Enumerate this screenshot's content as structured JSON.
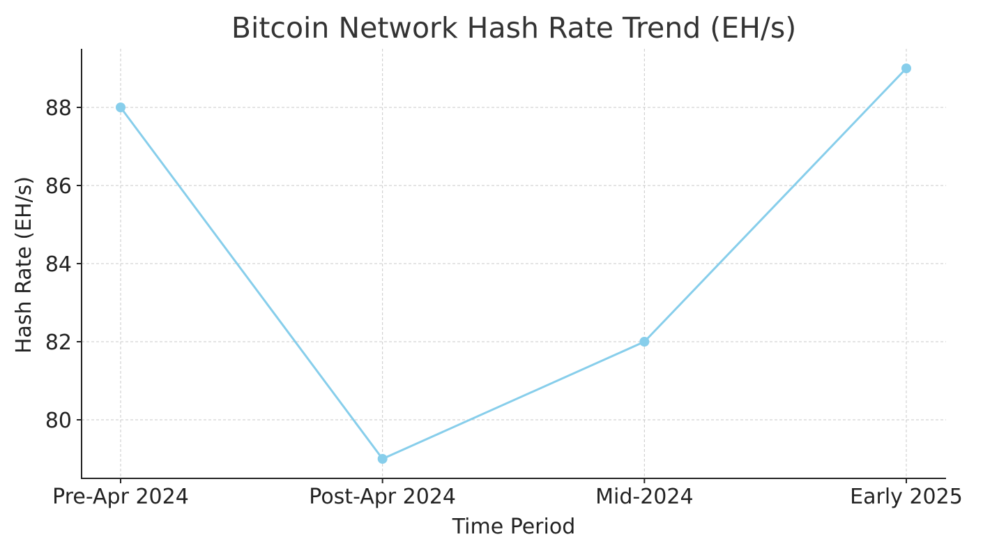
{
  "chart_data": {
    "type": "line",
    "title": "Bitcoin Network Hash Rate Trend (EH/s)",
    "xlabel": "Time Period",
    "ylabel": "Hash Rate (EH/s)",
    "categories": [
      "Pre-Apr 2024",
      "Post-Apr 2024",
      "Mid-2024",
      "Early 2025"
    ],
    "series": [
      {
        "values": [
          88,
          79,
          82,
          89
        ],
        "color": "#87CEEB",
        "marker": "circle"
      }
    ],
    "ylim": [
      78.5,
      89.5
    ],
    "yticks": [
      80,
      82,
      84,
      86,
      88
    ],
    "grid": true,
    "legend": "none"
  }
}
